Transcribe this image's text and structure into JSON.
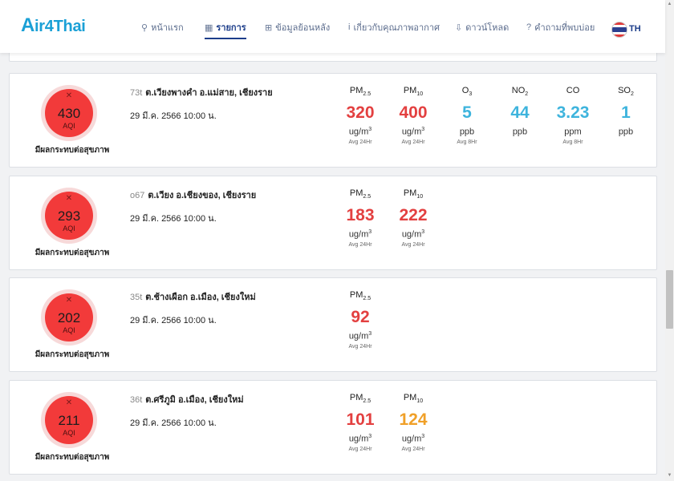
{
  "app": {
    "logo_text": "ir4Thai",
    "logo_letter": "A",
    "brand_color": "#1aa0d6"
  },
  "nav": {
    "items": [
      {
        "icon": "⚲",
        "label": "หน้าแรก"
      },
      {
        "icon": "▦",
        "label": "รายการ"
      },
      {
        "icon": "⊞",
        "label": "ข้อมูลย้อนหลัง"
      },
      {
        "icon": "i",
        "label": "เกี่ยวกับคุณภาพอากาศ"
      },
      {
        "icon": "⇩",
        "label": "ดาวน์โหลด"
      },
      {
        "icon": "?",
        "label": "คำถามที่พบบ่อย"
      }
    ],
    "active_index": 1,
    "language": "TH"
  },
  "stations": [
    {
      "code": "73t",
      "name": "ต.เวียงพางคำ อ.แม่สาย, เชียงราย",
      "datetime": "29 มี.ค. 2566 10:00 น.",
      "aqi": "430",
      "aqi_label": "AQI",
      "health": "มีผลกระทบต่อสุขภาพ",
      "pollutants": [
        {
          "name": "PM",
          "sub": "2.5",
          "value": "320",
          "unit": "ug/m",
          "unit_sup": "3",
          "avg": "Avg 24Hr",
          "color": "red"
        },
        {
          "name": "PM",
          "sub": "10",
          "value": "400",
          "unit": "ug/m",
          "unit_sup": "3",
          "avg": "Avg 24Hr",
          "color": "red"
        },
        {
          "name": "O",
          "sub": "3",
          "value": "5",
          "unit": "ppb",
          "unit_sup": "",
          "avg": "Avg 8Hr",
          "color": "blue"
        },
        {
          "name": "NO",
          "sub": "2",
          "value": "44",
          "unit": "ppb",
          "unit_sup": "",
          "avg": "",
          "color": "blue"
        },
        {
          "name": "CO",
          "sub": "",
          "value": "3.23",
          "unit": "ppm",
          "unit_sup": "",
          "avg": "Avg 8Hr",
          "color": "blue"
        },
        {
          "name": "SO",
          "sub": "2",
          "value": "1",
          "unit": "ppb",
          "unit_sup": "",
          "avg": "",
          "color": "blue"
        }
      ]
    },
    {
      "code": "o67",
      "name": "ต.เวียง อ.เชียงของ, เชียงราย",
      "datetime": "29 มี.ค. 2566 10:00 น.",
      "aqi": "293",
      "aqi_label": "AQI",
      "health": "มีผลกระทบต่อสุขภาพ",
      "pollutants": [
        {
          "name": "PM",
          "sub": "2.5",
          "value": "183",
          "unit": "ug/m",
          "unit_sup": "3",
          "avg": "Avg 24Hr",
          "color": "red"
        },
        {
          "name": "PM",
          "sub": "10",
          "value": "222",
          "unit": "ug/m",
          "unit_sup": "3",
          "avg": "Avg 24Hr",
          "color": "red"
        }
      ]
    },
    {
      "code": "35t",
      "name": "ต.ช้างเผือก อ.เมือง, เชียงใหม่",
      "datetime": "29 มี.ค. 2566 10:00 น.",
      "aqi": "202",
      "aqi_label": "AQI",
      "health": "มีผลกระทบต่อสุขภาพ",
      "pollutants": [
        {
          "name": "PM",
          "sub": "2.5",
          "value": "92",
          "unit": "ug/m",
          "unit_sup": "3",
          "avg": "Avg 24Hr",
          "color": "red"
        }
      ]
    },
    {
      "code": "36t",
      "name": "ต.ศรีภูมิ อ.เมือง, เชียงใหม่",
      "datetime": "29 มี.ค. 2566 10:00 น.",
      "aqi": "211",
      "aqi_label": "AQI",
      "health": "มีผลกระทบต่อสุขภาพ",
      "pollutants": [
        {
          "name": "PM",
          "sub": "2.5",
          "value": "101",
          "unit": "ug/m",
          "unit_sup": "3",
          "avg": "Avg 24Hr",
          "color": "red"
        },
        {
          "name": "PM",
          "sub": "10",
          "value": "124",
          "unit": "ug/m",
          "unit_sup": "3",
          "avg": "Avg 24Hr",
          "color": "orange"
        }
      ]
    }
  ]
}
